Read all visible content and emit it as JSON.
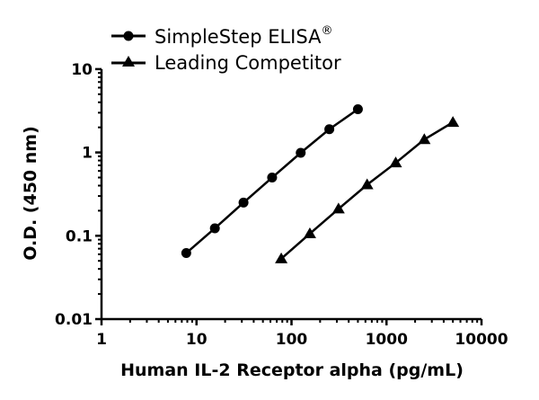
{
  "chart_data": {
    "type": "line",
    "title": "",
    "xlabel": "Human IL-2 Receptor alpha (pg/mL)",
    "ylabel": "O.D. (450 nm)",
    "xscale": "log",
    "yscale": "log",
    "xlim": [
      1,
      10000
    ],
    "ylim": [
      0.01,
      10
    ],
    "x_ticks": [
      "1",
      "10",
      "100",
      "1000",
      "10000"
    ],
    "y_ticks": [
      "0.01",
      "0.1",
      "1",
      "10"
    ],
    "grid": false,
    "legend_position": "top-left",
    "series": [
      {
        "name": "SimpleStep ELISA®",
        "marker": "circle",
        "x": [
          7.8,
          15.6,
          31.25,
          62.5,
          125,
          250,
          500
        ],
        "y": [
          0.062,
          0.123,
          0.25,
          0.5,
          0.99,
          1.9,
          3.3
        ]
      },
      {
        "name": "Leading Competitor",
        "marker": "triangle",
        "x": [
          78,
          156,
          312.5,
          625,
          1250,
          2500,
          5000
        ],
        "y": [
          0.053,
          0.106,
          0.21,
          0.41,
          0.75,
          1.43,
          2.3
        ]
      }
    ]
  },
  "legend": {
    "items": [
      {
        "label": "SimpleStep ELISA",
        "superscript": "®"
      },
      {
        "label": "Leading Competitor",
        "superscript": ""
      }
    ]
  },
  "axes": {
    "x_title": "Human IL-2 Receptor alpha (pg/mL)",
    "y_title": "O.D. (450 nm)",
    "x_tick_labels": [
      "1",
      "10",
      "100",
      "1000",
      "10000"
    ],
    "y_tick_labels": [
      "0.01",
      "0.1",
      "1",
      "10"
    ]
  }
}
